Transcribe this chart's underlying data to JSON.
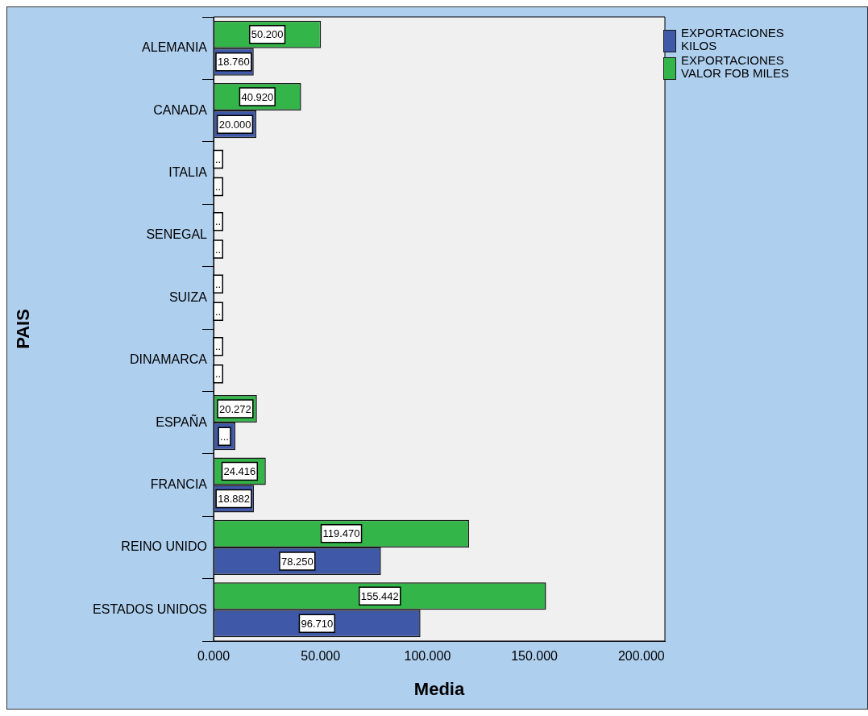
{
  "chart_data": {
    "type": "bar",
    "orientation": "horizontal",
    "xlabel": "Media",
    "ylabel": "PAIS",
    "categories": [
      "ALEMANIA",
      "CANADA",
      "ITALIA",
      "SENEGAL",
      "SUIZA",
      "DINAMARCA",
      "ESPAÑA",
      "FRANCIA",
      "REINO UNIDO",
      "ESTADOS UNIDOS"
    ],
    "series": [
      {
        "name": "EXPORTACIONES KILOS",
        "color": "#3f58a8",
        "values": [
          18.76,
          20.0,
          null,
          null,
          null,
          null,
          10.2,
          18.882,
          78.25,
          96.71
        ],
        "value_labels": [
          "18.760",
          "20.000",
          "..",
          "..",
          "..",
          "..",
          "...",
          "18.882",
          "78.250",
          "96.710"
        ]
      },
      {
        "name": "EXPORTACIONES VALOR FOB MILES",
        "color": "#33b54a",
        "values": [
          50.2,
          40.92,
          null,
          null,
          null,
          null,
          20.272,
          24.416,
          119.47,
          155.442
        ],
        "value_labels": [
          "50.200",
          "40.920",
          "..",
          "..",
          "..",
          "..",
          "20.272",
          "24.416",
          "119.470",
          "155.442"
        ]
      }
    ],
    "xlim": [
      0,
      211
    ],
    "xticks": [
      {
        "value": 0,
        "label": "0.000"
      },
      {
        "value": 50,
        "label": "50.000"
      },
      {
        "value": 100,
        "label": "100.000"
      },
      {
        "value": 150,
        "label": "150.000"
      },
      {
        "value": 200,
        "label": "200.000"
      }
    ],
    "grid": false,
    "legend": "top right"
  }
}
